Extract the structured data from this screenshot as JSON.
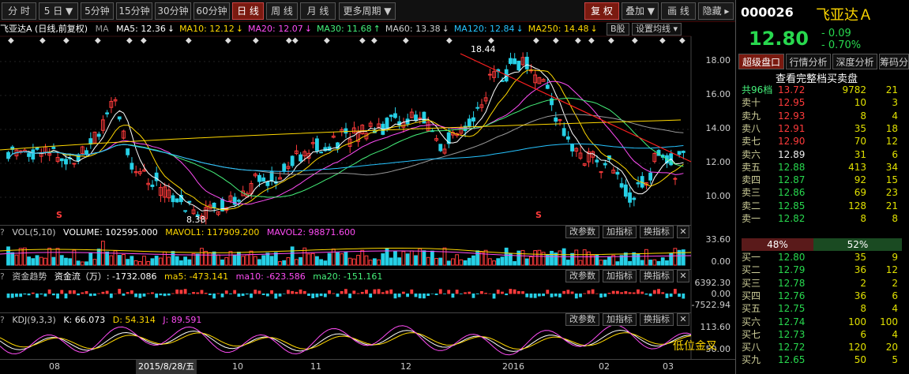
{
  "toolbar": {
    "periods": [
      "分 时",
      "5 日 ▼",
      "5分钟",
      "15分钟",
      "30分钟",
      "60分钟",
      "日 线",
      "周 线",
      "月 线",
      "更多周期 ▼"
    ],
    "active_period": "日 线",
    "right_buttons": [
      "复 权",
      "叠加 ▼",
      "画 线",
      "隐藏 ▸"
    ],
    "active_right": "复 权"
  },
  "main_chart": {
    "name_label": "飞亚达A (日线,前复权)",
    "ma_label": "MA",
    "ma": [
      {
        "text": "MA5: 12.36",
        "color": "#ffffff",
        "arrow": "↓"
      },
      {
        "text": "MA10: 12.12",
        "color": "#ffd800",
        "arrow": "↓"
      },
      {
        "text": "MA20: 12.07",
        "color": "#ff4cf5",
        "arrow": "↓"
      },
      {
        "text": "MA30: 11.68",
        "color": "#45f07a",
        "arrow": "↑"
      },
      {
        "text": "MA60: 13.38",
        "color": "#cccccc",
        "arrow": "↓"
      },
      {
        "text": "MA120: 12.84",
        "color": "#26c3ff",
        "arrow": "↓"
      },
      {
        "text": "MA250: 14.48",
        "color": "#ffd800",
        "arrow": "↓"
      }
    ],
    "b_button": "B股",
    "set_ma_button": "设置均线 ▾",
    "y_ticks": [
      "18.00",
      "16.00",
      "14.00",
      "12.00",
      "10.00"
    ],
    "high_label": "18.44",
    "low_label": "8.38",
    "s_marker": "S"
  },
  "volume_pane": {
    "title": "VOL(5,10)",
    "volume": "VOLUME: 102595.000",
    "mavol1": "MAVOL1: 117909.200",
    "mavol2": "MAVOL2: 98871.600",
    "y_ticks": [
      "33.60",
      "0.00"
    ]
  },
  "fund_pane": {
    "title": "资金趋势",
    "flow": "资金流（万）: -1732.086",
    "ma5": "ma5: -473.141",
    "ma10": "ma10: -623.586",
    "ma20": "ma20: -151.161",
    "y_ticks": [
      "6392.30",
      "0.00",
      "-7522.94"
    ]
  },
  "kdj_pane": {
    "title": "KDJ(9,3,3)",
    "k": "K: 66.073",
    "d": "D: 54.314",
    "j": "J: 89.591",
    "y_ticks": [
      "113.60",
      "50.00"
    ],
    "annotation": "低位金叉"
  },
  "pane_buttons": [
    "改参数",
    "加指标",
    "换指标"
  ],
  "x_axis": {
    "labels": [
      "08",
      "10",
      "11",
      "12",
      "2016",
      "02",
      "03"
    ],
    "date_tooltip": "2015/8/28/五"
  },
  "quote": {
    "code": "000026",
    "name": "飞亚达Ａ",
    "price": "12.80",
    "change": "- 0.09",
    "change_pct": "- 0.70%"
  },
  "right_tabs": [
    "超级盘口",
    "行情分析",
    "深度分析",
    "筹码分"
  ],
  "active_right_tab": "超级盘口",
  "order_book": {
    "header": "查看完整档买卖盘",
    "total_row": {
      "label": "共96档",
      "price": "13.72",
      "vol": "9782",
      "cnt": "21"
    },
    "sell": [
      {
        "label": "卖十",
        "price": "12.95",
        "vol": "10",
        "cnt": "3"
      },
      {
        "label": "卖九",
        "price": "12.93",
        "vol": "8",
        "cnt": "4"
      },
      {
        "label": "卖八",
        "price": "12.91",
        "vol": "35",
        "cnt": "18"
      },
      {
        "label": "卖七",
        "price": "12.90",
        "vol": "70",
        "cnt": "12"
      },
      {
        "label": "卖六",
        "price": "12.89",
        "vol": "31",
        "cnt": "6"
      },
      {
        "label": "卖五",
        "price": "12.88",
        "vol": "413",
        "cnt": "34"
      },
      {
        "label": "卖四",
        "price": "12.87",
        "vol": "92",
        "cnt": "15"
      },
      {
        "label": "卖三",
        "price": "12.86",
        "vol": "69",
        "cnt": "23"
      },
      {
        "label": "卖二",
        "price": "12.85",
        "vol": "128",
        "cnt": "21"
      },
      {
        "label": "卖一",
        "price": "12.82",
        "vol": "8",
        "cnt": "8"
      }
    ],
    "ratio_sell": "48%",
    "ratio_buy": "52%",
    "buy": [
      {
        "label": "买一",
        "price": "12.80",
        "vol": "35",
        "cnt": "9"
      },
      {
        "label": "买二",
        "price": "12.79",
        "vol": "36",
        "cnt": "12"
      },
      {
        "label": "买三",
        "price": "12.78",
        "vol": "2",
        "cnt": "2"
      },
      {
        "label": "买四",
        "price": "12.76",
        "vol": "36",
        "cnt": "6"
      },
      {
        "label": "买五",
        "price": "12.75",
        "vol": "8",
        "cnt": "4"
      },
      {
        "label": "买六",
        "price": "12.74",
        "vol": "100",
        "cnt": "100"
      },
      {
        "label": "买七",
        "price": "12.73",
        "vol": "6",
        "cnt": "4"
      },
      {
        "label": "买八",
        "price": "12.72",
        "vol": "120",
        "cnt": "20"
      },
      {
        "label": "买九",
        "price": "12.65",
        "vol": "50",
        "cnt": "5"
      }
    ]
  },
  "colors": {
    "up": "#ff3b3b",
    "down": "#26d0e6",
    "bg": "#000000",
    "accent": "#7a1a10"
  }
}
